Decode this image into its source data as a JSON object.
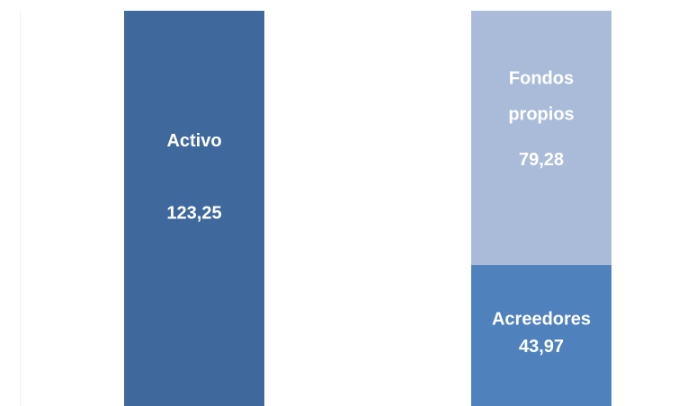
{
  "chart_data": {
    "type": "bar",
    "stacked": true,
    "categories": [
      null,
      null
    ],
    "series": [
      {
        "name": "Activo",
        "color": "#3f699d",
        "values": [
          123.25,
          null
        ],
        "value_labels": [
          "123,25",
          null
        ]
      },
      {
        "name": "Acreedores",
        "color": "#4f81bd",
        "values": [
          null,
          43.97
        ],
        "value_labels": [
          null,
          "43,97"
        ]
      },
      {
        "name": "Fondos propios",
        "color": "#a9bbd9",
        "values": [
          null,
          79.28
        ],
        "value_labels": [
          null,
          "79,28"
        ]
      }
    ],
    "ylim": [
      0,
      123.25
    ]
  }
}
